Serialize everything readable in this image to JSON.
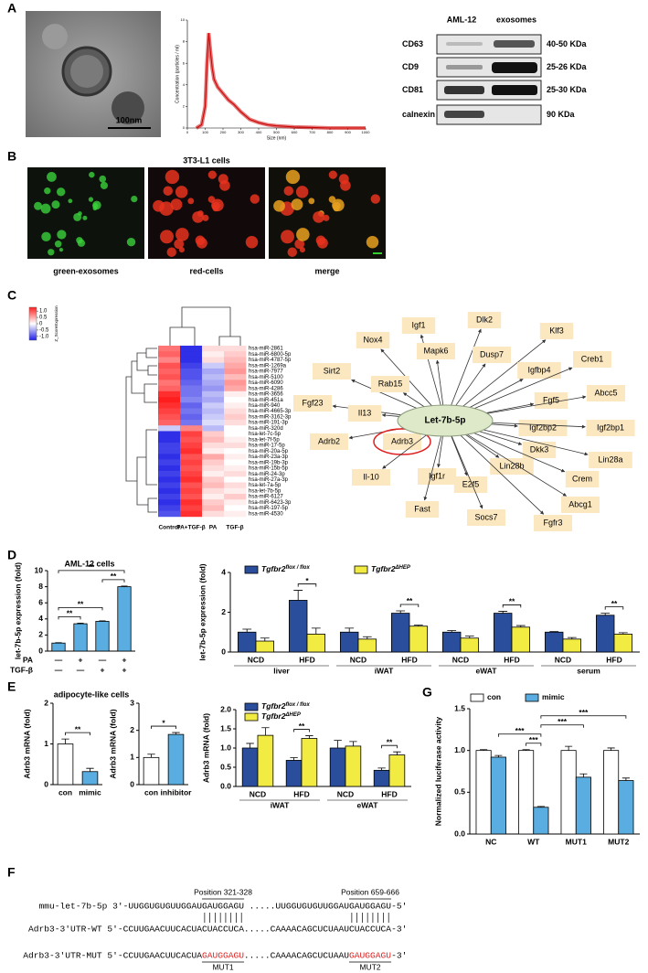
{
  "panel_labels": [
    "A",
    "B",
    "C",
    "D",
    "E",
    "F",
    "G"
  ],
  "panel_a": {
    "scale_bar": "100nm",
    "blot": {
      "columns": [
        "AML-12",
        "exosomes"
      ],
      "rows": [
        {
          "label": "CD63",
          "size": "40-50 KDa"
        },
        {
          "label": "CD9",
          "size": "25-26 KDa"
        },
        {
          "label": "CD81",
          "size": "25-30 KDa"
        },
        {
          "label": "calnexin",
          "size": "90 KDa"
        }
      ]
    }
  },
  "panel_b": {
    "title": "3T3-L1 cells",
    "captions": [
      "green-exosomes",
      "red-cells",
      "merge"
    ]
  },
  "panel_e": {
    "title": "adipocyte-like cells"
  },
  "network": {
    "center": "Let-7b-5p",
    "nodes": [
      "Nox4",
      "Igf1",
      "Dlk2",
      "Klf3",
      "Mapk6",
      "Dusp7",
      "Igfbp4",
      "Creb1",
      "Sirt2",
      "Rab15",
      "Fgf5",
      "Abcc5",
      "Fgf23",
      "Il13",
      "Igf2bp2",
      "Igf2bp1",
      "Adrb2",
      "Adrb3",
      "Dkk3",
      "Lin28a",
      "Il-10",
      "Igf1r",
      "E2f5",
      "Lin28b",
      "Crem",
      "Fast",
      "Socs7",
      "Fgfr3",
      "Abcg1"
    ],
    "highlighted": 17,
    "highlight_color": "#e02020"
  },
  "sequences": {
    "positions": [
      "Position 321-328",
      "Position 659-666"
    ],
    "mutations": [
      "MUT1",
      "MUT2"
    ],
    "lines": [
      {
        "parts": [
          "mmu-let-7b-5p 3'-UUGGUGUGUUGGAU",
          "GAUGGAGU",
          ".....UUGGUGUGUUGGAU",
          "GAUGGAGU",
          "-5'"
        ]
      },
      {
        "parts": [
          "Adrb3-3'UTR-WT 5'-CCUUGAACUUCACUA",
          "CUACCUCA",
          ".....CAAAACAGCUCUAAU",
          "CUACCUCA",
          "-3'"
        ]
      },
      {
        "parts": [
          "Adrb3-3'UTR-MUT 5'-CCUUGAACUUCACUA",
          "GAUGGAGU",
          ".....CAAAACAGCUCUAAU",
          "GAUGGAGU",
          "-3'"
        ],
        "site_color": "#e02020"
      }
    ]
  },
  "chart_data": [
    {
      "type": "line",
      "xlabel": "Size (nm)",
      "ylabel": "Concentration (particles / ml)",
      "color": "#cc0000",
      "x": [
        50,
        80,
        100,
        110,
        120,
        130,
        140,
        150,
        170,
        200,
        230,
        260,
        300,
        350,
        400,
        450,
        500,
        600,
        700,
        800,
        900,
        1000
      ],
      "values": [
        0,
        0.3,
        2,
        6,
        8.8,
        7,
        5.5,
        4.5,
        3.8,
        3.2,
        2.6,
        2.2,
        1.5,
        0.8,
        0.5,
        0.3,
        0.2,
        0.1,
        0.05,
        0,
        0,
        0
      ],
      "xlim": [
        0,
        1000
      ],
      "xticks": [
        0,
        100,
        200,
        300,
        400,
        500,
        600,
        700,
        800,
        900,
        1000
      ],
      "ylim": [
        0,
        10
      ],
      "yticks": [
        0,
        2,
        4,
        6,
        8,
        10
      ]
    },
    {
      "type": "heatmap",
      "legend_title": "Z_ScoreExpression",
      "columns": [
        "Control",
        "PA+TGF-β",
        "PA",
        "TGF-β"
      ],
      "rows": [
        "hsa-miR-2861",
        "hsa-miR-6800-5p",
        "hsa-miR-4787-5p",
        "hsa-miR-1269a",
        "hsa-miR-7977",
        "hsa-miR-5100",
        "hsa-miR-6090",
        "hsa-miR-4286",
        "hsa-miR-3656",
        "hsa-miR-451a",
        "hsa-miR-940",
        "hsa-miR-4665-3p",
        "hsa-miR-3162-3p",
        "hsa-miR-191-3p",
        "hsa-miR-320d",
        "hsa-let-7c-5p",
        "hsa-let-7f-5p",
        "hsa-miR-17-5p",
        "hsa-miR-20a-5p",
        "hsa-miR-23a-3p",
        "hsa-miR-19b-3p",
        "hsa-miR-15b-5p",
        "hsa-miR-24-3p",
        "hsa-miR-27a-3p",
        "hsa-let-7a-5p",
        "hsa-let-7b-5p",
        "hsa-miR-6127",
        "hsa-miR-6423-3p",
        "hsa-miR-197-5p",
        "hsa-miR-4530"
      ],
      "values": [
        [
          0.8,
          -1.2,
          0.2,
          0.2
        ],
        [
          0.9,
          -1.2,
          0.1,
          0.3
        ],
        [
          0.7,
          -1.2,
          0.2,
          0.4
        ],
        [
          1.0,
          -1.1,
          -0.3,
          0.5
        ],
        [
          0.9,
          -1.0,
          -0.5,
          0.6
        ],
        [
          1.0,
          -1.0,
          -0.4,
          0.4
        ],
        [
          0.8,
          -0.9,
          -0.5,
          0.6
        ],
        [
          0.9,
          -0.8,
          -0.6,
          0.5
        ],
        [
          1.2,
          -0.8,
          -0.4,
          0.1
        ],
        [
          1.3,
          -0.7,
          -0.5,
          0
        ],
        [
          1.2,
          -0.9,
          -0.3,
          0.1
        ],
        [
          1.1,
          -0.8,
          -0.4,
          0.2
        ],
        [
          1.0,
          -0.9,
          -0.3,
          0.3
        ],
        [
          0.9,
          -0.8,
          -0.2,
          0.2
        ],
        [
          -0.3,
          0.7,
          -0.4,
          0
        ],
        [
          -1.2,
          1.1,
          0.3,
          0
        ],
        [
          -1.2,
          1.0,
          0.4,
          0.1
        ],
        [
          -1.1,
          1.1,
          0.2,
          0.2
        ],
        [
          -1.1,
          1.2,
          0.1,
          0
        ],
        [
          -1.2,
          1.0,
          0.5,
          0.1
        ],
        [
          -1.1,
          1.1,
          0.3,
          0
        ],
        [
          -1.2,
          1.0,
          0.2,
          0.1
        ],
        [
          -1.1,
          1.1,
          0.1,
          0.2
        ],
        [
          -1.2,
          1.2,
          0.3,
          0
        ],
        [
          -1.1,
          1.0,
          0.4,
          0.2
        ],
        [
          -1.2,
          1.1,
          0.2,
          0.1
        ],
        [
          -1.1,
          1.0,
          0.1,
          0.3
        ],
        [
          -1.2,
          1.2,
          0.3,
          0.1
        ],
        [
          -1.1,
          1.1,
          0.4,
          0
        ],
        [
          -1.0,
          1.2,
          0.2,
          0.1
        ]
      ],
      "colormap": [
        "#1e1ee6",
        "#ffffff",
        "#ff1e1e"
      ],
      "zlim": [
        -1.3,
        1.3
      ],
      "zticks": [
        {
          "value": 1,
          "label": "1.0"
        },
        0.5,
        0,
        -0.5,
        {
          "value": -1,
          "label": "-1.0"
        }
      ]
    },
    {
      "type": "bar",
      "title": "AML-12 cells",
      "ylabel": "let-7b-5p expression (fold)",
      "color": "#5aade0",
      "categories": [
        null,
        null,
        null,
        null
      ],
      "values": [
        1,
        3.4,
        3.7,
        8.0
      ],
      "errors": [
        0.05,
        0.08,
        0.06,
        0.08
      ],
      "condition_rows": [
        {
          "label": "PA",
          "values": [
            "—",
            "+",
            "—",
            "+"
          ]
        },
        {
          "label": "TGF-β",
          "values": [
            "—",
            "—",
            "+",
            "+"
          ]
        }
      ],
      "ylim": [
        0,
        10
      ],
      "yticks": [
        0,
        2,
        4,
        6,
        8,
        10
      ],
      "brackets": [
        {
          "from": [
            0,
            0
          ],
          "to": [
            0,
            1
          ],
          "label": "**"
        },
        {
          "from": [
            0,
            0
          ],
          "to": [
            0,
            2
          ],
          "label": "**"
        },
        {
          "from": [
            0,
            2
          ],
          "to": [
            0,
            3
          ],
          "label": "**"
        },
        {
          "from": [
            0,
            0
          ],
          "to": [
            0,
            3
          ],
          "label": "**"
        }
      ]
    },
    {
      "type": "bar",
      "ylabel": "let-7b-5p expression (fold)",
      "categories": [
        "NCD",
        "HFD",
        "NCD",
        "HFD",
        "NCD",
        "HFD",
        "NCD",
        "HFD"
      ],
      "groups": [
        "liver",
        "iWAT",
        "eWAT",
        "serum"
      ],
      "series": [
        {
          "name": "Tgfbr2",
          "name_sup": "flox / flox",
          "color": "#2a4d9c",
          "values": [
            1.0,
            2.6,
            1.0,
            1.95,
            1.0,
            1.95,
            1.0,
            1.85
          ],
          "errors": [
            0.15,
            0.5,
            0.2,
            0.12,
            0.08,
            0.1,
            0.03,
            0.1
          ]
        },
        {
          "name": "Tgfbr2",
          "name_sup": "ΔHEP",
          "color": "#f2ec42",
          "values": [
            0.55,
            0.9,
            0.65,
            1.3,
            0.7,
            1.25,
            0.65,
            0.9
          ],
          "errors": [
            0.15,
            0.3,
            0.12,
            0.05,
            0.1,
            0.08,
            0.08,
            0.07
          ]
        }
      ],
      "ylim": [
        0,
        4
      ],
      "yticks": [
        0,
        2,
        4
      ],
      "brackets": [
        {
          "from": [
            0,
            1
          ],
          "to": [
            1,
            1
          ],
          "label": "*"
        },
        {
          "from": [
            0,
            3
          ],
          "to": [
            1,
            3
          ],
          "label": "**"
        },
        {
          "from": [
            0,
            5
          ],
          "to": [
            1,
            5
          ],
          "label": "**"
        },
        {
          "from": [
            0,
            7
          ],
          "to": [
            1,
            7
          ],
          "label": "**"
        }
      ]
    },
    {
      "type": "bar",
      "ylabel": "Adrb3 mRNA (fold)",
      "categories": [
        "con",
        "mimic"
      ],
      "values": [
        1.0,
        0.32
      ],
      "errors": [
        0.12,
        0.08
      ],
      "colors": [
        "#ffffff",
        "#5aade0"
      ],
      "ylim": [
        0,
        2
      ],
      "yticks": [
        0,
        1,
        2
      ],
      "brackets": [
        {
          "from": [
            0,
            0
          ],
          "to": [
            0,
            1
          ],
          "label": "**"
        }
      ]
    },
    {
      "type": "bar",
      "ylabel": "Adrb3 mRNA (fold)",
      "categories": [
        "con",
        "inhibitor"
      ],
      "values": [
        1.0,
        1.85
      ],
      "errors": [
        0.12,
        0.07
      ],
      "colors": [
        "#ffffff",
        "#5aade0"
      ],
      "ylim": [
        0,
        3
      ],
      "yticks": [
        0,
        1,
        2,
        3
      ],
      "brackets": [
        {
          "from": [
            0,
            0
          ],
          "to": [
            0,
            1
          ],
          "label": "*"
        }
      ]
    },
    {
      "type": "bar",
      "ylabel": "Adrb3 mRNA (fold)",
      "categories": [
        "NCD",
        "HFD",
        "NCD",
        "HFD"
      ],
      "groups": [
        "iWAT",
        "eWAT"
      ],
      "series": [
        {
          "name": "Tgfbr2",
          "name_sup": "flox / flox",
          "color": "#2a4d9c",
          "values": [
            1.0,
            0.68,
            1.0,
            0.42
          ],
          "errors": [
            0.12,
            0.07,
            0.2,
            0.06
          ]
        },
        {
          "name": "Tgfbr2",
          "name_sup": "ΔHEP",
          "color": "#f2ec42",
          "values": [
            1.33,
            1.25,
            1.05,
            0.82
          ],
          "errors": [
            0.2,
            0.07,
            0.12,
            0.08
          ]
        }
      ],
      "ylim": [
        0,
        2
      ],
      "yticks": [
        {
          "value": 0,
          "label": "0.0"
        },
        0.5,
        {
          "value": 1,
          "label": "1.0"
        },
        1.5,
        {
          "value": 2,
          "label": "2.0"
        }
      ],
      "brackets": [
        {
          "from": [
            0,
            1
          ],
          "to": [
            1,
            1
          ],
          "label": "**"
        },
        {
          "from": [
            0,
            3
          ],
          "to": [
            1,
            3
          ],
          "label": "**"
        }
      ]
    },
    {
      "type": "bar",
      "ylabel": "Normalized luciferase activity",
      "categories": [
        "NC",
        "WT",
        "MUT1",
        "MUT2"
      ],
      "series": [
        {
          "name": "con",
          "color": "#ffffff",
          "values": [
            1.0,
            1.0,
            1.0,
            1.0
          ],
          "errors": [
            0.01,
            0.01,
            0.05,
            0.03
          ]
        },
        {
          "name": "mimic",
          "color": "#5aade0",
          "values": [
            0.92,
            0.32,
            0.68,
            0.64
          ],
          "errors": [
            0.02,
            0.01,
            0.04,
            0.03
          ]
        }
      ],
      "ylim": [
        0,
        1.5
      ],
      "yticks": [
        {
          "value": 0,
          "label": "0.0"
        },
        0.5,
        {
          "value": 1,
          "label": "1.0"
        },
        1.5
      ],
      "brackets": [
        {
          "from": [
            0,
            1
          ],
          "to": [
            1,
            1
          ],
          "label": "***"
        },
        {
          "from": [
            1,
            0
          ],
          "to": [
            1,
            1
          ],
          "label": "***"
        },
        {
          "from": [
            1,
            1
          ],
          "to": [
            1,
            2
          ],
          "label": "***"
        },
        {
          "from": [
            1,
            1
          ],
          "to": [
            1,
            3
          ],
          "label": "***"
        }
      ]
    }
  ]
}
